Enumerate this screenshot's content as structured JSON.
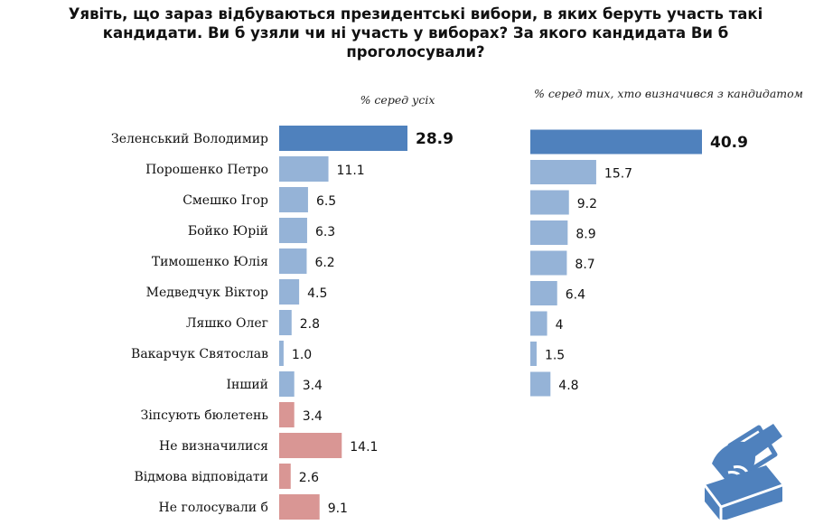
{
  "title_lines": [
    "Уявіть, що зараз відбуваються президентські вибори, в яких беруть участь такі",
    "кандидати. Ви б узяли чи ні участь у виборах? За якого кандидата Ви б",
    "проголосували?"
  ],
  "colors": {
    "highlight": "#4f81bd",
    "candidate": "#95b3d7",
    "other": "#d99694"
  },
  "chart_data": [
    {
      "type": "bar",
      "orientation": "horizontal",
      "subtitle": "% серед усіх",
      "categories": [
        "Зеленський Володимир",
        "Порошенко Петро",
        "Смешко Ігор",
        "Бойко Юрій",
        "Тимошенко Юлія",
        "Медведчук Віктор",
        "Ляшко Олег",
        "Вакарчук Святослав",
        "Інший",
        "Зіпсують бюлетень",
        "Не визначилися",
        "Відмова відповідати",
        "Не голосували б"
      ],
      "values": [
        28.9,
        11.1,
        6.5,
        6.3,
        6.2,
        4.5,
        2.8,
        1.0,
        3.4,
        3.4,
        14.1,
        2.6,
        9.1
      ],
      "value_labels": [
        "28.9",
        "11.1",
        "6.5",
        "6.3",
        "6.2",
        "4.5",
        "2.8",
        "1.0",
        "3.4",
        "3.4",
        "14.1",
        "2.6",
        "9.1"
      ],
      "groups": [
        "highlight",
        "candidate",
        "candidate",
        "candidate",
        "candidate",
        "candidate",
        "candidate",
        "candidate",
        "candidate",
        "other",
        "other",
        "other",
        "other"
      ]
    },
    {
      "type": "bar",
      "orientation": "horizontal",
      "subtitle": "% серед тих, хто визначився з кандидатом",
      "categories": [
        "Зеленський Володимир",
        "Порошенко Петро",
        "Смешко Ігор",
        "Бойко Юрій",
        "Тимошенко Юлія",
        "Медведчук Віктор",
        "Ляшко Олег",
        "Вакарчук Святослав",
        "Інший"
      ],
      "values": [
        40.9,
        15.7,
        9.2,
        8.9,
        8.7,
        6.4,
        4,
        1.5,
        4.8
      ],
      "value_labels": [
        "40.9",
        "15.7",
        "9.2",
        "8.9",
        "8.7",
        "6.4",
        "4",
        "1.5",
        "4.8"
      ],
      "groups": [
        "highlight",
        "candidate",
        "candidate",
        "candidate",
        "candidate",
        "candidate",
        "candidate",
        "candidate",
        "candidate"
      ]
    }
  ]
}
